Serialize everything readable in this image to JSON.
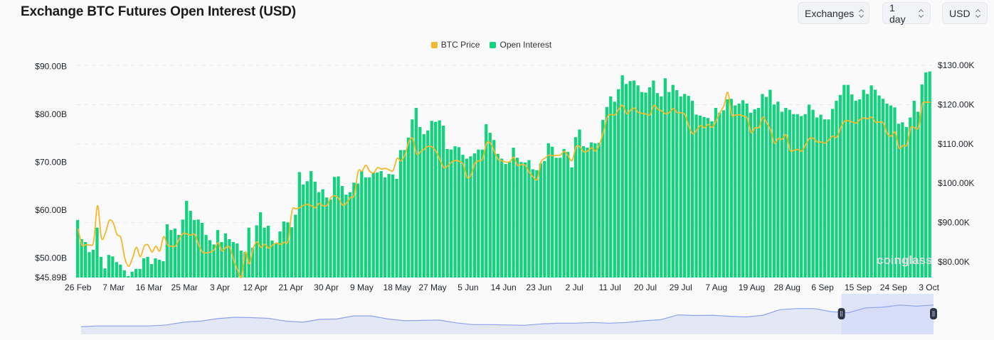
{
  "header": {
    "title": "Exchange BTC Futures Open Interest (USD)",
    "controls": [
      {
        "label": "Exchanges",
        "icon": "chevron-up-down-icon"
      },
      {
        "label": "1 day",
        "icon": "chevron-up-down-icon"
      },
      {
        "label": "USD",
        "icon": "chevron-up-down-icon"
      }
    ]
  },
  "watermark": "coinglass",
  "chart_data": {
    "type": "bar+line",
    "title": "Exchange BTC Futures Open Interest (USD)",
    "legend": {
      "placement": "top-center",
      "entries": [
        "BTC Price",
        "Open Interest"
      ]
    },
    "colors": {
      "open_interest": "#12d27e",
      "btc_price": "#f3b82b",
      "navigator": "#8fa2f0",
      "navigator_fill": "#e3e8f6",
      "navigator_selection": "#d3dbf8"
    },
    "x_ticks": [
      "26 Feb",
      "7 Mar",
      "16 Mar",
      "25 Mar",
      "3 Apr",
      "12 Apr",
      "21 Apr",
      "30 Apr",
      "9 May",
      "18 May",
      "27 May",
      "5 Jun",
      "14 Jun",
      "23 Jun",
      "2 Jul",
      "11 Jul",
      "20 Jul",
      "29 Jul",
      "7 Aug",
      "19 Aug",
      "28 Aug",
      "6 Sep",
      "15 Sep",
      "24 Sep",
      "3 Oct"
    ],
    "y_left": {
      "unit": "USD billions",
      "ylim": [
        45.89,
        90.19
      ],
      "tick_labels": [
        "$90.00B",
        "$80.00B",
        "$70.00B",
        "$60.00B",
        "$50.00B",
        "$45.89B"
      ],
      "tick_values": [
        90,
        80,
        70,
        60,
        50,
        45.89
      ]
    },
    "y_right": {
      "unit": "USD thousands",
      "ylim": [
        76.03,
        130
      ],
      "tick_labels": [
        "$130.00K",
        "$120.00K",
        "$110.00K",
        "$100.00K",
        "$90.00K",
        "$80.00K"
      ],
      "tick_values": [
        130,
        120,
        110,
        100,
        90,
        80
      ]
    },
    "grid": true,
    "series": [
      {
        "name": "Open Interest",
        "type": "bar",
        "axis": "left",
        "values": [
          57.9,
          53.9,
          53.3,
          51.2,
          51.7,
          56.3,
          50.2,
          47.8,
          50.6,
          50.3,
          49.1,
          48.6,
          47.4,
          46.2,
          47.1,
          47.7,
          47.7,
          49.9,
          50.2,
          48.7,
          49.9,
          49.6,
          49.3,
          57.0,
          55.8,
          56.1,
          54.8,
          58.0,
          61.9,
          59.8,
          57.9,
          58.0,
          57.3,
          54.8,
          53.7,
          52.8,
          55.8,
          53.3,
          55.1,
          53.9,
          53.3,
          53.0,
          51.5,
          51.2,
          56.3,
          52.1,
          56.8,
          59.5,
          56.3,
          56.7,
          53.6,
          53.0,
          55.5,
          57.6,
          57.4,
          56.4,
          59.0,
          67.9,
          65.3,
          66.0,
          68.1,
          65.9,
          63.7,
          64.3,
          62.6,
          62.2,
          66.9,
          67.0,
          65.0,
          63.2,
          63.7,
          65.7,
          65.5,
          68.2,
          66.8,
          66.8,
          67.8,
          67.8,
          68.1,
          66.8,
          67.5,
          67.4,
          66.5,
          72.5,
          72.5,
          75.1,
          78.9,
          81.3,
          77.3,
          75.8,
          76.6,
          78.6,
          78.4,
          78.7,
          77.6,
          72.7,
          72.6,
          73.3,
          73.1,
          71.5,
          70.7,
          71.2,
          71.8,
          72.6,
          72.6,
          77.9,
          76.1,
          74.6,
          71.7,
          70.7,
          69.6,
          70.0,
          73.0,
          70.9,
          70.0,
          69.9,
          70.4,
          68.5,
          68.3,
          69.7,
          70.2,
          73.9,
          73.2,
          70.9,
          70.9,
          72.7,
          72.1,
          68.9,
          75.2,
          76.8,
          73.3,
          73.0,
          74.1,
          73.9,
          74.0,
          78.8,
          81.5,
          83.7,
          82.6,
          85.2,
          88.1,
          86.3,
          86.9,
          87.0,
          86.0,
          84.6,
          84.5,
          85.6,
          87.0,
          84.4,
          83.7,
          87.5,
          84.6,
          86.1,
          85.0,
          83.7,
          84.2,
          83.8,
          82.8,
          79.9,
          79.7,
          79.4,
          79.2,
          78.5,
          81.3,
          80.3,
          80.8,
          83.1,
          83.2,
          81.8,
          82.2,
          82.9,
          82.2,
          80.3,
          81.0,
          81.3,
          84.2,
          83.6,
          85.1,
          82.0,
          82.6,
          80.5,
          81.3,
          80.9,
          80.0,
          80.0,
          79.6,
          80.0,
          82.0,
          80.9,
          79.3,
          79.9,
          78.9,
          78.9,
          81.1,
          82.8,
          84.0,
          86.1,
          86.1,
          84.1,
          82.8,
          83.1,
          85.1,
          84.2,
          86.0,
          85.1,
          83.9,
          83.2,
          82.2,
          81.8,
          81.4,
          78.0,
          78.3,
          77.3,
          79.3,
          82.8,
          80.5,
          86.2,
          88.7,
          88.9
        ]
      },
      {
        "name": "BTC Price",
        "type": "line",
        "axis": "right",
        "values": [
          88.5,
          84.3,
          84.4,
          84.3,
          85.2,
          94.3,
          86.1,
          87.3,
          90.5,
          90.0,
          87.0,
          86.1,
          81.0,
          78.9,
          81.0,
          83.7,
          81.3,
          84.0,
          84.3,
          82.5,
          84.0,
          82.8,
          86.4,
          84.3,
          84.0,
          84.0,
          85.8,
          87.3,
          87.1,
          86.8,
          87.0,
          84.3,
          82.5,
          82.3,
          82.5,
          83.1,
          84.9,
          82.8,
          83.7,
          83.7,
          80.4,
          78.0,
          76.2,
          82.5,
          79.5,
          83.4,
          85.1,
          83.7,
          84.5,
          83.5,
          84.3,
          84.8,
          84.5,
          85.0,
          85.4,
          93.1,
          93.5,
          93.8,
          94.4,
          94.6,
          94.3,
          93.8,
          94.9,
          94.3,
          94.4,
          96.4,
          96.8,
          96.1,
          94.4,
          95.0,
          96.4,
          97.0,
          103.0,
          103.1,
          104.6,
          103.0,
          102.7,
          104.0,
          103.6,
          103.8,
          103.4,
          103.3,
          106.3,
          105.7,
          107.2,
          110.5,
          111.4,
          107.5,
          108.0,
          108.7,
          109.4,
          109.2,
          108.1,
          106.0,
          104.0,
          104.4,
          105.4,
          105.8,
          105.6,
          104.8,
          101.5,
          102.1,
          105.1,
          105.7,
          106.3,
          110.2,
          110.2,
          108.1,
          106.0,
          105.7,
          105.4,
          105.5,
          106.6,
          104.5,
          104.8,
          104.5,
          102.7,
          101.6,
          101.0,
          105.4,
          106.4,
          107.2,
          107.0,
          107.1,
          107.2,
          108.1,
          106.9,
          105.8,
          109.3,
          109.2,
          108.0,
          108.2,
          109.0,
          108.2,
          109.9,
          112.9,
          116.8,
          117.5,
          117.4,
          118.9,
          119.8,
          117.7,
          118.6,
          119.1,
          118.0,
          117.8,
          117.6,
          117.4,
          119.8,
          118.9,
          118.4,
          117.7,
          118.0,
          119.0,
          118.0,
          117.9,
          117.4,
          114.4,
          112.6,
          113.5,
          114.7,
          114.1,
          115.0,
          114.2,
          115.9,
          118.0,
          119.8,
          123.1,
          117.4,
          117.4,
          117.4,
          117.1,
          116.5,
          112.9,
          114.1,
          114.2,
          116.8,
          115.3,
          113.5,
          110.2,
          111.4,
          111.2,
          112.3,
          108.4,
          108.4,
          108.6,
          108.2,
          109.8,
          111.4,
          111.4,
          110.5,
          110.5,
          110.2,
          111.1,
          112.0,
          111.7,
          114.1,
          115.8,
          115.9,
          115.6,
          115.3,
          116.2,
          116.6,
          116.4,
          116.8,
          115.5,
          115.6,
          115.3,
          112.6,
          112.0,
          113.0,
          109.0,
          109.6,
          109.8,
          114.1,
          114.1,
          114.2,
          120.1,
          120.6,
          120.6
        ]
      }
    ],
    "navigator": {
      "relative_level": [
        0.22,
        0.24,
        0.24,
        0.24,
        0.24,
        0.27,
        0.35,
        0.38,
        0.45,
        0.49,
        0.48,
        0.46,
        0.38,
        0.35,
        0.43,
        0.44,
        0.53,
        0.53,
        0.44,
        0.39,
        0.4,
        0.41,
        0.33,
        0.28,
        0.28,
        0.27,
        0.26,
        0.3,
        0.32,
        0.32,
        0.34,
        0.32,
        0.34,
        0.39,
        0.42,
        0.56,
        0.54,
        0.55,
        0.52,
        0.5,
        0.55,
        0.71,
        0.74,
        0.74,
        0.65,
        0.62,
        0.76,
        0.78,
        0.84,
        0.81,
        0.84
      ],
      "selected_range": [
        0.892,
        1.0
      ]
    }
  }
}
